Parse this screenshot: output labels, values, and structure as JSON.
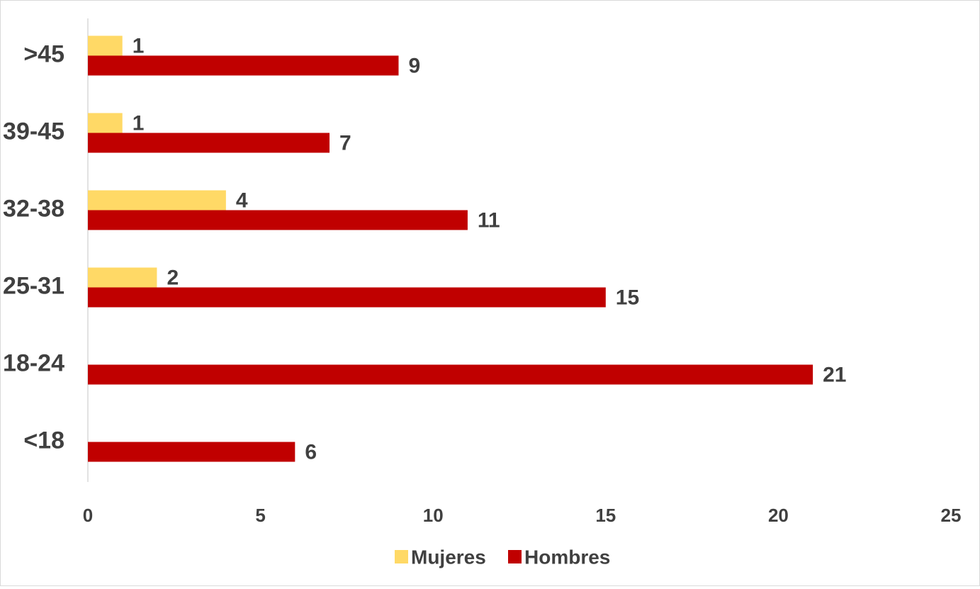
{
  "chart_data": {
    "type": "bar",
    "orientation": "horizontal",
    "categories": [
      ">45",
      "39-45",
      "32-38",
      "25-31",
      "18-24",
      "<18"
    ],
    "series": [
      {
        "name": "Mujeres",
        "color": "#FFD966",
        "values": [
          1,
          1,
          4,
          2,
          null,
          null
        ]
      },
      {
        "name": "Hombres",
        "color": "#C00000",
        "values": [
          9,
          7,
          11,
          15,
          21,
          6
        ]
      }
    ],
    "xlim": [
      0,
      25
    ],
    "xticks": [
      0,
      5,
      10,
      15,
      20,
      25
    ],
    "grid": false,
    "legend_position": "bottom",
    "data_labels": true
  }
}
